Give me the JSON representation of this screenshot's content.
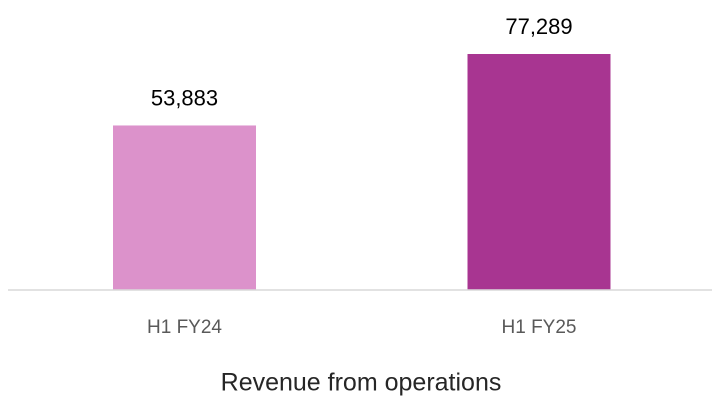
{
  "chart_data": {
    "type": "bar",
    "categories": [
      "H1 FY24",
      "H1 FY25"
    ],
    "values": [
      53883,
      77289
    ],
    "value_labels": [
      "53,883",
      "77,289"
    ],
    "colors": [
      "#dc92cb",
      "#a83591"
    ],
    "x_label": "Revenue from operations"
  }
}
